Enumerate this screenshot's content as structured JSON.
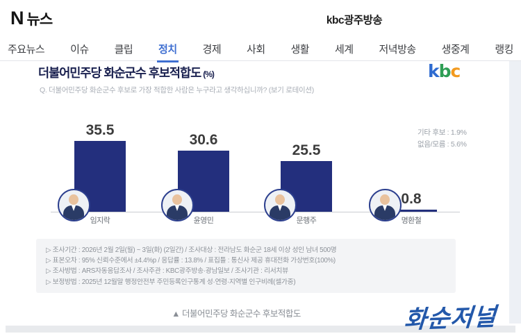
{
  "header": {
    "logo_n": "N",
    "logo_text": "뉴스",
    "site_title": "kbc광주방송"
  },
  "nav": {
    "items": [
      {
        "label": "주요뉴스",
        "active": false
      },
      {
        "label": "이슈",
        "active": false
      },
      {
        "label": "클립",
        "active": false
      },
      {
        "label": "정치",
        "active": true
      },
      {
        "label": "경제",
        "active": false
      },
      {
        "label": "사회",
        "active": false
      },
      {
        "label": "생활",
        "active": false
      },
      {
        "label": "세계",
        "active": false
      },
      {
        "label": "저녁방송",
        "active": false
      },
      {
        "label": "생중계",
        "active": false
      },
      {
        "label": "랭킹",
        "active": false
      }
    ]
  },
  "chart": {
    "title": "더불어민주당 화순군수 후보적합도",
    "title_unit": "(%)",
    "question": "Q. 더불어민주당 화순군수 후보로 가장 적합한 사람은 누구라고 생각하십니까? (보기 로테이션)",
    "broadcaster_logo": "kbc",
    "side_stats": [
      "기타 후보 : 1.9%",
      "없음/모름 : 5.6%"
    ]
  },
  "chart_data": {
    "type": "bar",
    "title": "더불어민주당 화순군수 후보적합도 (%)",
    "categories": [
      "임지락",
      "윤영민",
      "문행주",
      "명환철"
    ],
    "values": [
      35.5,
      30.6,
      25.5,
      0.8
    ],
    "other_candidates_pct": 1.9,
    "none_dont_know_pct": 5.6,
    "ylim": [
      0,
      40
    ],
    "bar_color": "#232f7d",
    "legend": "none",
    "grid": false
  },
  "footnotes": {
    "lines": [
      "▷ 조사기간 : 2026년 2월 2일(월) ~ 3일(화) (2일간) / 조사대상 : 전라남도 화순군 18세 이상 성인 남녀 500명",
      "▷ 표본오차 : 95% 신뢰수준에서 ±4.4%p / 응답률 : 13.8% / 표집틀 : 통신사 제공 휴대전화 가상번호(100%)",
      "▷ 조사방법 : ARS자동응답조사 / 조사주관 : KBC광주방송·광남일보 / 조사기관 : 리서치뷰",
      "▷ 보정방법 : 2025년 12월말 행정안전부 주민등록인구통계 성·연령·지역별 인구비례(셀가중)"
    ]
  },
  "caption": "▲ 더불어민주당 화순군수 후보적합도",
  "watermark": "화순저널",
  "colors": {
    "accent_blue": "#3f6fd1",
    "bar_navy": "#232f7d",
    "watermark_blue": "#2358aa",
    "kbc_k": "#2e6bd0",
    "kbc_b": "#2f9e55",
    "kbc_c": "#f29a1f"
  }
}
